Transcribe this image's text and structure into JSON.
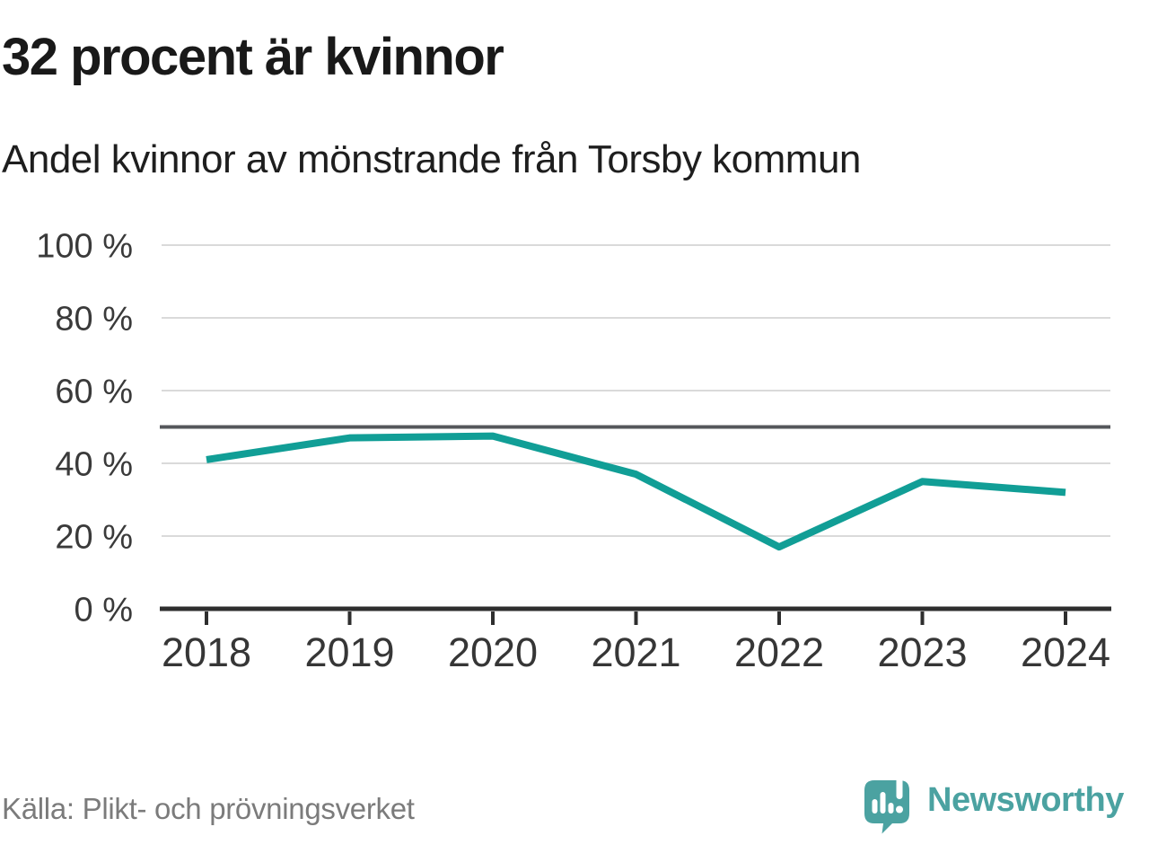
{
  "header": {
    "title": "32 procent är kvinnor",
    "subtitle": "Andel kvinnor av mönstrande från Torsby kommun"
  },
  "chart_data": {
    "type": "line",
    "title": "32 procent är kvinnor",
    "subtitle": "Andel kvinnor av mönstrande från Torsby kommun",
    "x": [
      "2018",
      "2019",
      "2020",
      "2021",
      "2022",
      "2023",
      "2024"
    ],
    "series": [
      {
        "name": "Andel kvinnor av mönstrande",
        "values": [
          41,
          47,
          47.5,
          37,
          17,
          35,
          32
        ]
      }
    ],
    "xlabel": "",
    "ylabel": "",
    "unit": "%",
    "ylim": [
      0,
      100
    ],
    "yticks": [
      0,
      20,
      40,
      60,
      80,
      100
    ],
    "ytick_suffix": " %",
    "reference_line": 50,
    "grid": true,
    "legend": "none",
    "colors": {
      "line": "#119e96",
      "grid": "#dadada",
      "reference": "#55575b",
      "axis": "#2e2e2e",
      "tick_label": "#3a3a3a"
    }
  },
  "footer": {
    "source": "Källa: Plikt- och prövningsverket",
    "brand": {
      "name": "Newsworthy",
      "color": "#4ba2a1"
    }
  }
}
